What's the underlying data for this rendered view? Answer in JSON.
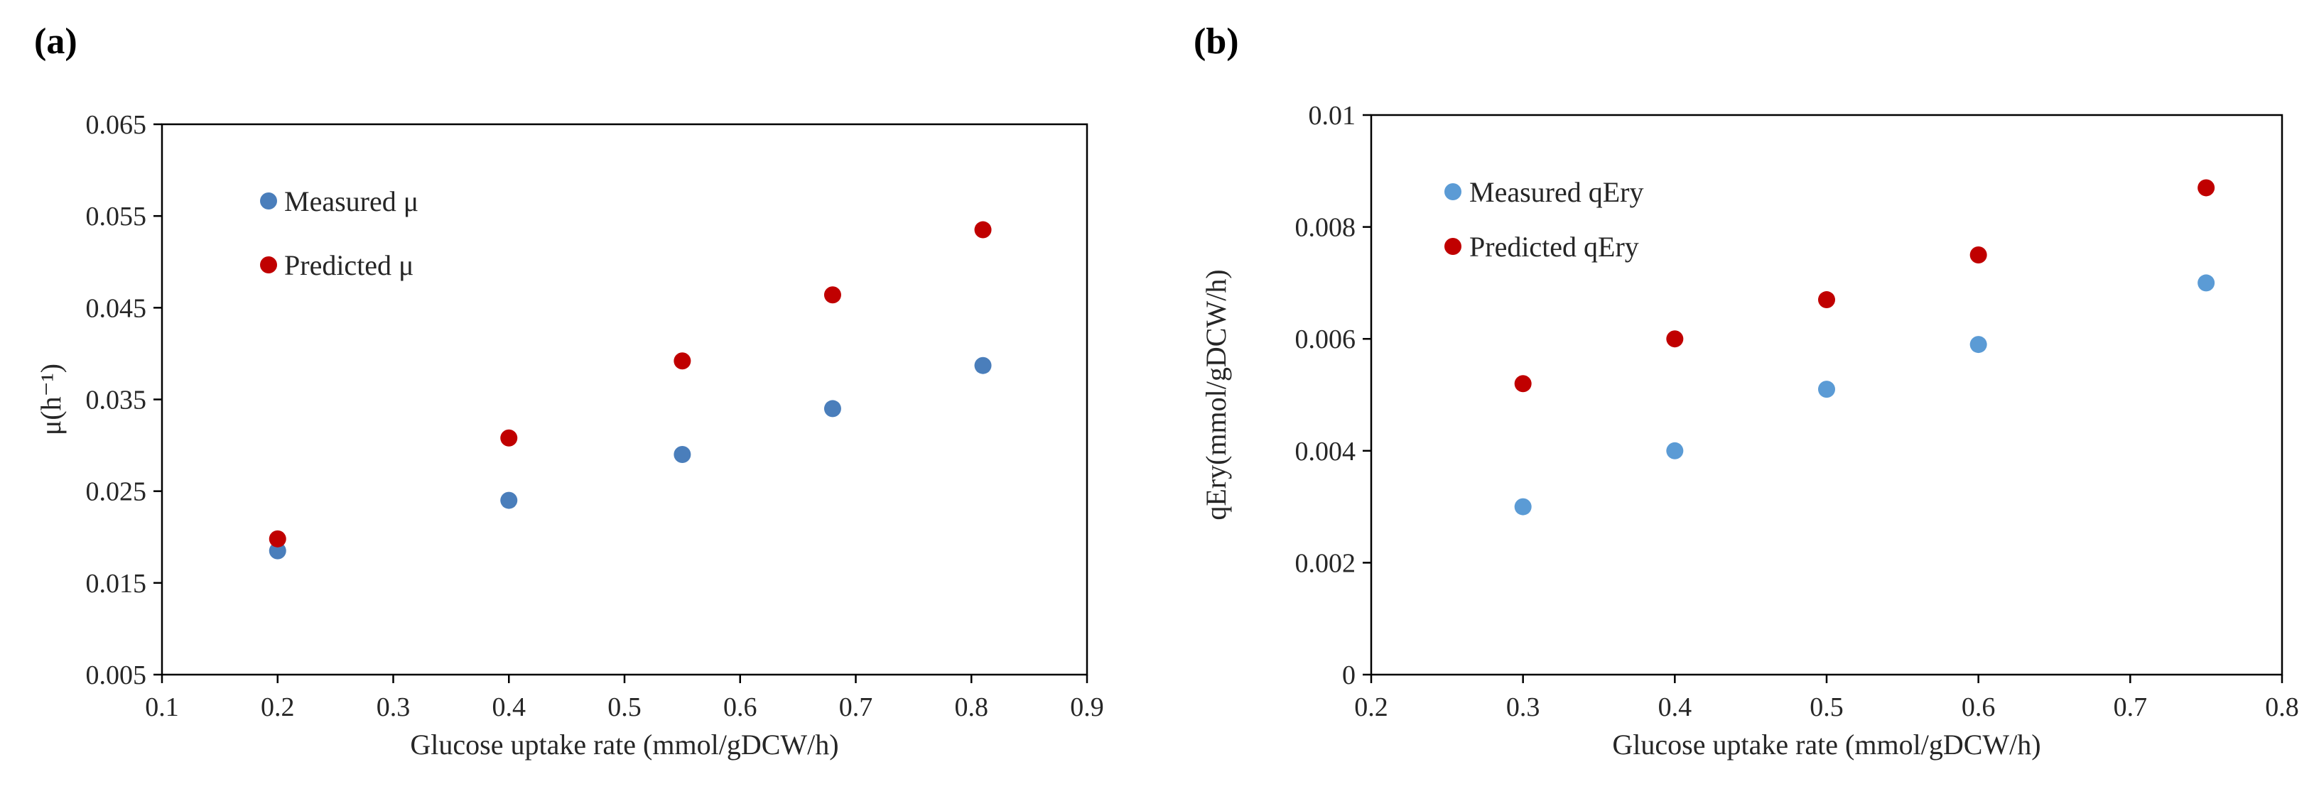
{
  "chart_data": [
    {
      "type": "scatter",
      "panel_label": "(a)",
      "title": "",
      "xlabel": "Glucose uptake rate (mmol/gDCW/h)",
      "ylabel": "μ(h⁻¹)",
      "xlim": [
        0.1,
        0.9
      ],
      "ylim": [
        0.005,
        0.065
      ],
      "xticks": [
        "0.1",
        "0.2",
        "0.3",
        "0.4",
        "0.5",
        "0.6",
        "0.7",
        "0.8",
        "0.9"
      ],
      "yticks": [
        "0.005",
        "0.015",
        "0.025",
        "0.035",
        "0.045",
        "0.055",
        "0.065"
      ],
      "grid": false,
      "legend": "top-left",
      "series": [
        {
          "name": "Measured μ",
          "color": "#4a7ebb",
          "x": [
            0.2,
            0.4,
            0.55,
            0.68,
            0.81
          ],
          "y": [
            0.0185,
            0.024,
            0.029,
            0.034,
            0.0387
          ]
        },
        {
          "name": "Predicted μ",
          "color": "#c00000",
          "x": [
            0.2,
            0.4,
            0.55,
            0.68,
            0.81
          ],
          "y": [
            0.0198,
            0.0308,
            0.0392,
            0.0464,
            0.0535
          ]
        }
      ]
    },
    {
      "type": "scatter",
      "panel_label": "(b)",
      "title": "",
      "xlabel": "Glucose uptake rate (mmol/gDCW/h)",
      "ylabel": "qEry(mmol/gDCW/h)",
      "xlim": [
        0.2,
        0.8
      ],
      "ylim": [
        0,
        0.01
      ],
      "xticks": [
        "0.2",
        "0.3",
        "0.4",
        "0.5",
        "0.6",
        "0.7",
        "0.8"
      ],
      "yticks": [
        "0",
        "0.002",
        "0.004",
        "0.006",
        "0.008",
        "0.01"
      ],
      "grid": false,
      "legend": "top-left",
      "series": [
        {
          "name": "Measured qEry",
          "color": "#5b9bd5",
          "x": [
            0.3,
            0.4,
            0.5,
            0.6,
            0.75
          ],
          "y": [
            0.003,
            0.004,
            0.0051,
            0.0059,
            0.007
          ]
        },
        {
          "name": "Predicted qEry",
          "color": "#c00000",
          "x": [
            0.3,
            0.4,
            0.5,
            0.6,
            0.75
          ],
          "y": [
            0.0052,
            0.006,
            0.0067,
            0.0075,
            0.0087
          ]
        }
      ]
    }
  ]
}
